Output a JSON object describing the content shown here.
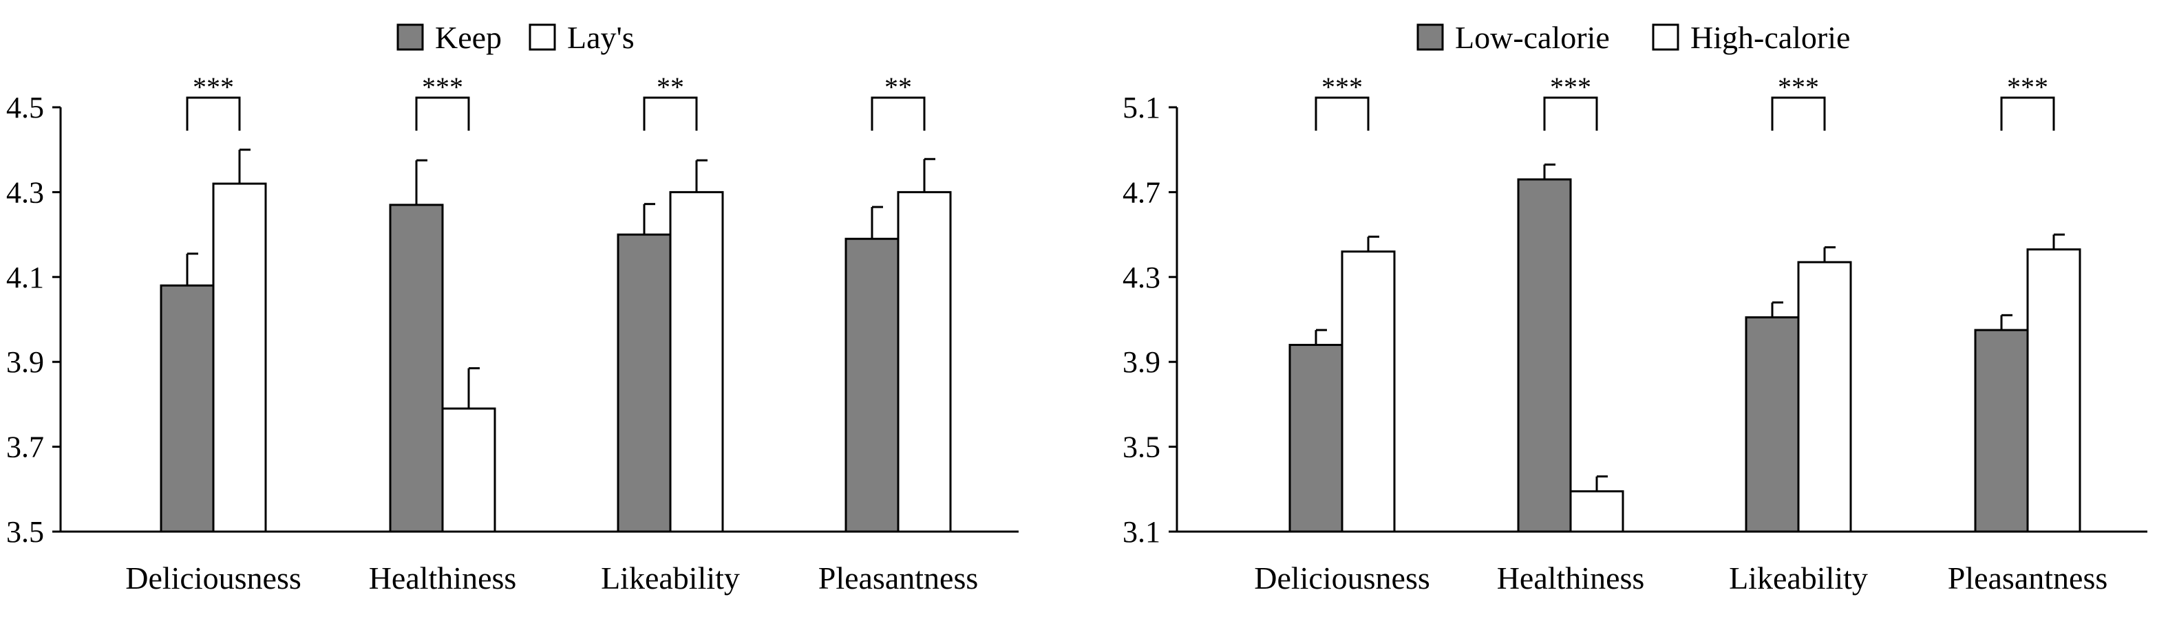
{
  "chart_data": [
    {
      "type": "bar",
      "categories": [
        "Deliciousness",
        "Healthiness",
        "Likeability",
        "Pleasantness"
      ],
      "series": [
        {
          "name": "Keep",
          "values": [
            4.08,
            4.27,
            4.2,
            4.19
          ],
          "errors": [
            0.075,
            0.105,
            0.072,
            0.075
          ],
          "color": "#808080"
        },
        {
          "name": "Lay's",
          "values": [
            4.32,
            3.79,
            4.3,
            4.3
          ],
          "errors": [
            0.08,
            0.095,
            0.075,
            0.078
          ],
          "color": "#ffffff"
        }
      ],
      "significance": [
        "***",
        "***",
        "**",
        "**"
      ],
      "ylim": [
        3.5,
        4.5
      ],
      "yticks": [
        "3.5",
        "3.7",
        "3.9",
        "4.1",
        "4.3",
        "4.5"
      ],
      "legend_position": "top-center"
    },
    {
      "type": "bar",
      "categories": [
        "Deliciousness",
        "Healthiness",
        "Likeability",
        "Pleasantness"
      ],
      "series": [
        {
          "name": "Low-calorie",
          "values": [
            3.98,
            4.76,
            4.11,
            4.05
          ],
          "errors": [
            0.07,
            0.07,
            0.07,
            0.07
          ],
          "color": "#808080"
        },
        {
          "name": "High-calorie",
          "values": [
            4.42,
            3.29,
            4.37,
            4.43
          ],
          "errors": [
            0.07,
            0.07,
            0.07,
            0.07
          ],
          "color": "#ffffff"
        }
      ],
      "significance": [
        "***",
        "***",
        "***",
        "***"
      ],
      "ylim": [
        3.1,
        5.1
      ],
      "yticks": [
        "3.1",
        "3.5",
        "3.9",
        "4.3",
        "4.7",
        "5.1"
      ],
      "legend_position": "top-center"
    }
  ]
}
